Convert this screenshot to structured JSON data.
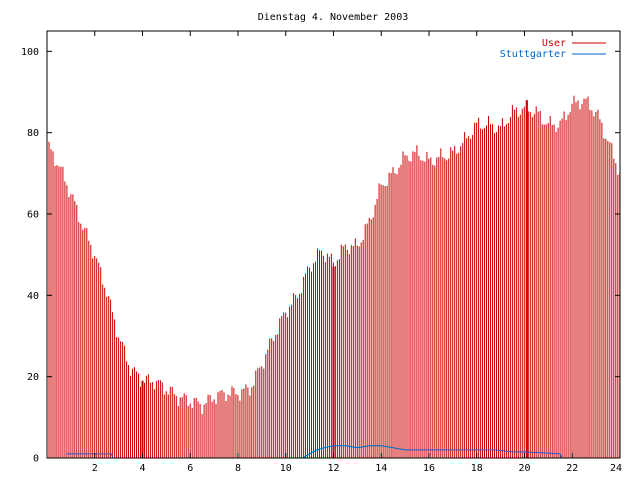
{
  "chart_data": {
    "type": "line",
    "title": "Dienstag 4. November 2003",
    "xlabel": "",
    "ylabel": "",
    "xlim": [
      0,
      24
    ],
    "ylim": [
      0,
      105
    ],
    "x_ticks": [
      "2",
      "4",
      "6",
      "8",
      "10",
      "12",
      "14",
      "16",
      "18",
      "20",
      "22",
      "24"
    ],
    "y_ticks": [
      "0",
      "20",
      "40",
      "60",
      "80",
      "100"
    ],
    "legend_position": "top-right",
    "grid": false,
    "sample_interval_hours": 0.0833,
    "series": [
      {
        "name": "User",
        "style": "impulses",
        "color": "#cc0000",
        "x": [
          0,
          0.5,
          1,
          1.5,
          2,
          2.5,
          3,
          3.5,
          4,
          4.5,
          5,
          5.5,
          6,
          6.5,
          7,
          7.5,
          8,
          8.5,
          9,
          9.5,
          10,
          10.5,
          11,
          11.5,
          12,
          12.5,
          13,
          13.5,
          14,
          14.5,
          15,
          15.5,
          16,
          16.5,
          17,
          17.5,
          18,
          18.5,
          19,
          19.5,
          20,
          20.5,
          21,
          21.5,
          22,
          22.5,
          23,
          23.5,
          24
        ],
        "values": [
          77,
          72,
          65,
          57,
          50,
          41,
          30,
          22,
          19,
          19,
          17,
          15,
          14,
          13,
          15,
          16,
          16,
          17,
          23,
          30,
          36,
          40,
          47,
          51,
          48,
          52,
          52,
          58,
          67,
          70,
          74,
          75,
          73,
          74,
          75,
          78,
          82,
          82,
          81,
          85,
          86,
          85,
          82,
          82,
          87,
          88,
          85,
          78,
          70
        ],
        "spikes": [
          {
            "x": 4,
            "value": 19
          },
          {
            "x": 12,
            "value": 47
          },
          {
            "x": 20.1,
            "value": 88
          }
        ]
      },
      {
        "name": "Stuttgarter",
        "style": "lines",
        "color": "#0066cc",
        "x": [
          0.8,
          2.7,
          2.75,
          10.7,
          11,
          11.3,
          11.6,
          12,
          12.5,
          13,
          13.5,
          14,
          14.5,
          15,
          16,
          17,
          18,
          18.8,
          19.5,
          20,
          21,
          21.5,
          21.55,
          24
        ],
        "values": [
          1,
          1,
          0,
          0,
          1,
          2,
          2.5,
          3,
          3,
          2.5,
          3,
          3,
          2.5,
          2,
          2,
          2,
          2,
          2,
          1.5,
          1.5,
          1.2,
          1,
          0,
          0
        ]
      }
    ]
  }
}
